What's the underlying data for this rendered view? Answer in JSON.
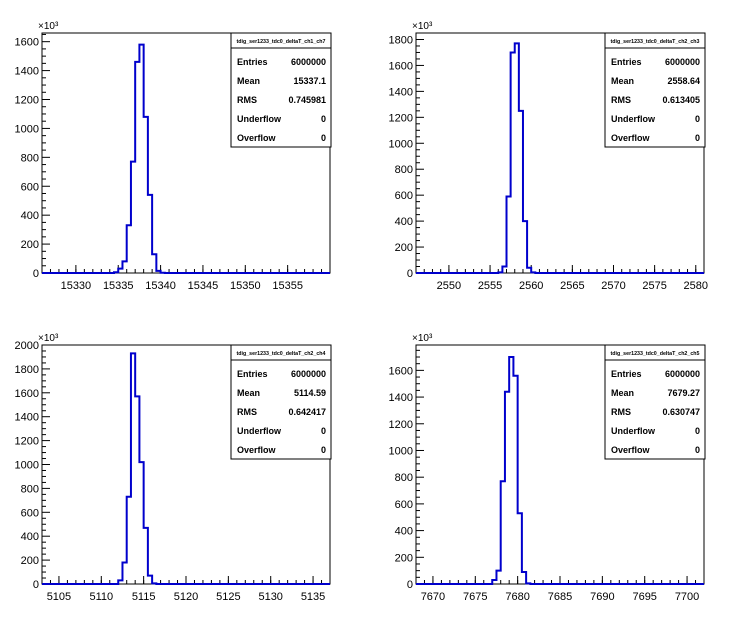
{
  "chart_data": [
    {
      "type": "histogram",
      "title": "tdig_ser1233_tdc0_deltaT_ch1_ch7",
      "y_multiplier_label": "×10³",
      "xlim": [
        15326,
        15360
      ],
      "ylim": [
        0,
        1660
      ],
      "x_ticks": [
        15330,
        15335,
        15340,
        15345,
        15350,
        15355
      ],
      "y_ticks": [
        0,
        200,
        400,
        600,
        800,
        1000,
        1200,
        1400,
        1600
      ],
      "bin_width": 0.5,
      "bins_x": [
        15334.5,
        15335.0,
        15335.5,
        15336.0,
        15336.5,
        15337.0,
        15337.5,
        15338.0,
        15338.5,
        15339.0,
        15339.5,
        15340.0
      ],
      "values": [
        5,
        30,
        80,
        330,
        770,
        1460,
        1580,
        1080,
        540,
        130,
        15,
        2
      ],
      "stats": [
        {
          "label": "Entries",
          "value": "6000000"
        },
        {
          "label": "Mean",
          "value": "15337.1"
        },
        {
          "label": "RMS",
          "value": "0.745981"
        },
        {
          "label": "Underflow",
          "value": "0"
        },
        {
          "label": "Overflow",
          "value": "0"
        }
      ]
    },
    {
      "type": "histogram",
      "title": "tdig_ser1233_tdc0_deltaT_ch2_ch3",
      "y_multiplier_label": "×10³",
      "xlim": [
        2546,
        2581
      ],
      "ylim": [
        0,
        1850
      ],
      "x_ticks": [
        2550,
        2555,
        2560,
        2565,
        2570,
        2575,
        2580
      ],
      "y_ticks": [
        0,
        200,
        400,
        600,
        800,
        1000,
        1200,
        1400,
        1600,
        1800
      ],
      "bin_width": 0.5,
      "bins_x": [
        2556.0,
        2556.5,
        2557.0,
        2557.5,
        2558.0,
        2558.5,
        2559.0,
        2559.5,
        2560.0,
        2560.5
      ],
      "values": [
        5,
        50,
        590,
        1700,
        1770,
        1250,
        400,
        40,
        5,
        0
      ],
      "stats": [
        {
          "label": "Entries",
          "value": "6000000"
        },
        {
          "label": "Mean",
          "value": "2558.64"
        },
        {
          "label": "RMS",
          "value": "0.613405"
        },
        {
          "label": "Underflow",
          "value": "0"
        },
        {
          "label": "Overflow",
          "value": "0"
        }
      ]
    },
    {
      "type": "histogram",
      "title": "tdig_ser1233_tdc0_deltaT_ch2_ch4",
      "y_multiplier_label": "×10³",
      "xlim": [
        5103,
        5137
      ],
      "ylim": [
        0,
        2000
      ],
      "x_ticks": [
        5105,
        5110,
        5115,
        5120,
        5125,
        5130,
        5135
      ],
      "y_ticks": [
        0,
        200,
        400,
        600,
        800,
        1000,
        1200,
        1400,
        1600,
        1800,
        2000
      ],
      "bin_width": 0.5,
      "bins_x": [
        5112.0,
        5112.5,
        5113.0,
        5113.5,
        5114.0,
        5114.5,
        5115.0,
        5115.5,
        5116.0,
        5116.5
      ],
      "values": [
        30,
        180,
        730,
        1930,
        1570,
        1020,
        470,
        70,
        5,
        0
      ],
      "stats": [
        {
          "label": "Entries",
          "value": "6000000"
        },
        {
          "label": "Mean",
          "value": "5114.59"
        },
        {
          "label": "RMS",
          "value": "0.642417"
        },
        {
          "label": "Underflow",
          "value": "0"
        },
        {
          "label": "Overflow",
          "value": "0"
        }
      ]
    },
    {
      "type": "histogram",
      "title": "tdig_ser1233_tdc0_deltaT_ch2_ch5",
      "y_multiplier_label": "×10³",
      "xlim": [
        7668,
        7702
      ],
      "ylim": [
        0,
        1790
      ],
      "x_ticks": [
        7670,
        7675,
        7680,
        7685,
        7690,
        7695,
        7700
      ],
      "y_ticks": [
        0,
        200,
        400,
        600,
        800,
        1000,
        1200,
        1400,
        1600
      ],
      "bin_width": 0.5,
      "bins_x": [
        7677.0,
        7677.5,
        7678.0,
        7678.5,
        7679.0,
        7679.5,
        7680.0,
        7680.5,
        7681.0
      ],
      "values": [
        30,
        100,
        770,
        1440,
        1700,
        1560,
        530,
        90,
        5
      ],
      "stats": [
        {
          "label": "Entries",
          "value": "6000000"
        },
        {
          "label": "Mean",
          "value": "7679.27"
        },
        {
          "label": "RMS",
          "value": "0.630747"
        },
        {
          "label": "Underflow",
          "value": "0"
        },
        {
          "label": "Overflow",
          "value": "0"
        }
      ]
    }
  ],
  "colors": {
    "histogram_line": "#0000cc",
    "axis": "#000000",
    "background": "#ffffff"
  }
}
